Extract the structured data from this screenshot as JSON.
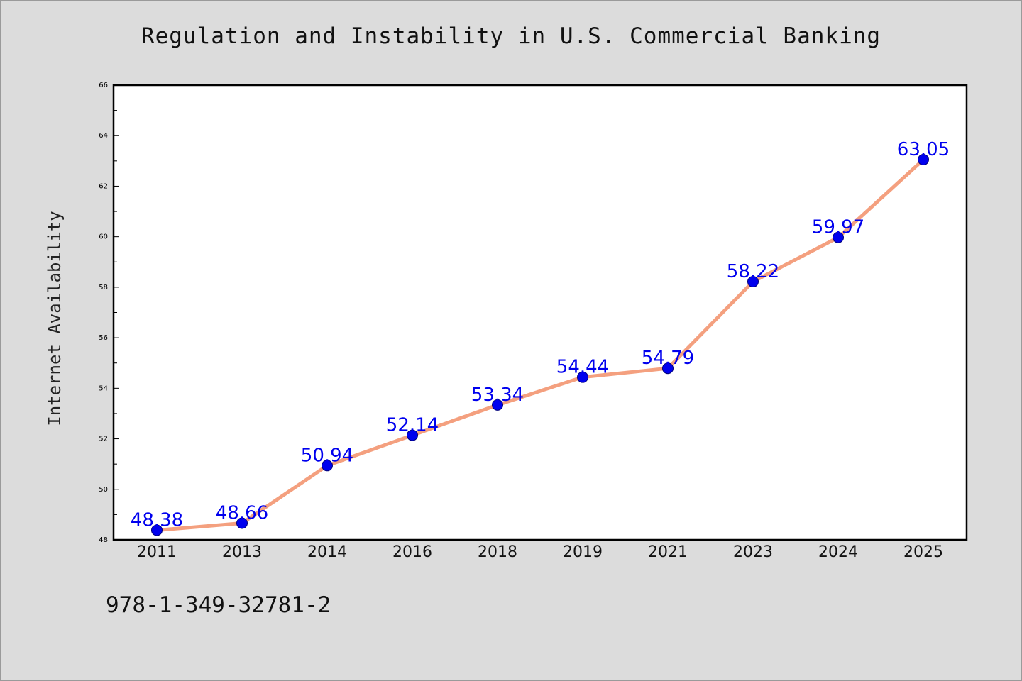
{
  "chart_data": {
    "type": "line",
    "title": "Regulation and Instability in U.S. Commercial Banking",
    "ylabel": "Internet Availability",
    "xlabel": "",
    "categories": [
      "2011",
      "2013",
      "2014",
      "2016",
      "2018",
      "2019",
      "2021",
      "2023",
      "2024",
      "2025"
    ],
    "series": [
      {
        "values": [
          48.38,
          48.66,
          50.94,
          52.14,
          53.34,
          54.44,
          54.79,
          58.22,
          59.97,
          63.05
        ],
        "line_color": "#f4a07f",
        "marker_color": "#0000ee",
        "label_color": "#0000ee"
      }
    ],
    "ylim": [
      48,
      66
    ],
    "yticks": [
      48,
      50,
      52,
      54,
      56,
      58,
      60,
      62,
      64,
      66
    ],
    "grid": false,
    "legend": "none"
  },
  "footer": {
    "isbn": "978-1-349-32781-2"
  },
  "colors": {
    "background": "#dcdcdc",
    "plot_background": "#ffffff"
  }
}
